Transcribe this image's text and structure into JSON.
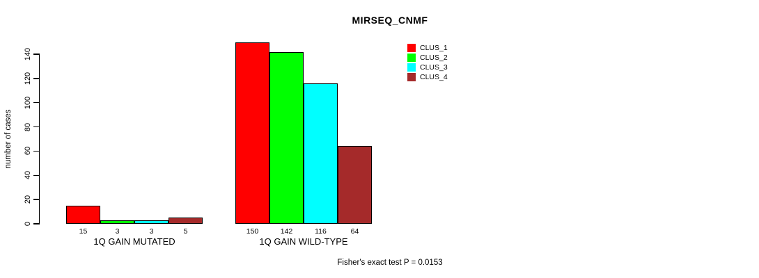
{
  "title": "MIRSEQ_CNMF",
  "footnote": "Fisher's exact test P = 0.0153",
  "chart_data": {
    "type": "bar",
    "title": "MIRSEQ_CNMF",
    "categories": [
      "1Q GAIN MUTATED",
      "1Q GAIN WILD-TYPE"
    ],
    "series": [
      {
        "name": "CLUS_1",
        "color": "#ff0000",
        "values": [
          15,
          150
        ]
      },
      {
        "name": "CLUS_2",
        "color": "#00ff00",
        "values": [
          3,
          142
        ]
      },
      {
        "name": "CLUS_3",
        "color": "#00ffff",
        "values": [
          3,
          116
        ]
      },
      {
        "name": "CLUS_4",
        "color": "#a52a2a",
        "values": [
          5,
          64
        ]
      }
    ],
    "ylabel": "number of cases",
    "xlabel": "",
    "yticks": [
      0,
      20,
      40,
      60,
      80,
      100,
      120,
      140
    ],
    "ylim": [
      0,
      150
    ],
    "bar_value_labels_shown": true,
    "grid": false,
    "legend": {
      "position": "top-right",
      "entries": [
        "CLUS_1",
        "CLUS_2",
        "CLUS_3",
        "CLUS_4"
      ]
    },
    "annotation": "Fisher's exact test P = 0.0153"
  }
}
